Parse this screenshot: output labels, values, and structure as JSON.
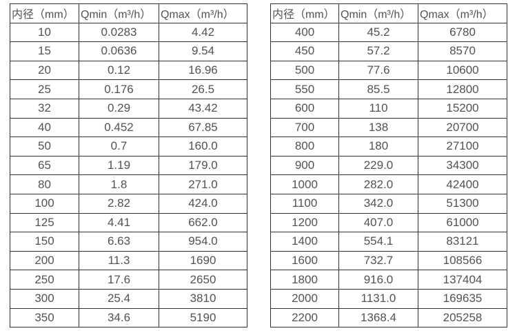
{
  "colors": {
    "background": "#ffffff",
    "border": "#2e2e2e",
    "text": "#525252"
  },
  "tables": [
    {
      "name": "flow-range-table-small-diameters",
      "headers": [
        "内径（mm）",
        "Qmin（m³/h）",
        "Qmax（m³/h）"
      ],
      "column_keys": [
        "inner_diameter_mm",
        "qmin_m3h",
        "qmax_m3h"
      ],
      "rows": [
        [
          "10",
          "0.0283",
          "4.42"
        ],
        [
          "15",
          "0.0636",
          "9.54"
        ],
        [
          "20",
          "0.12",
          "16.96"
        ],
        [
          "25",
          "0.176",
          "26.5"
        ],
        [
          "32",
          "0.29",
          "43.42"
        ],
        [
          "40",
          "0.452",
          "67.85"
        ],
        [
          "50",
          "0.7",
          "160.0"
        ],
        [
          "65",
          "1.19",
          "179.0"
        ],
        [
          "80",
          "1.8",
          "271.0"
        ],
        [
          "100",
          "2.82",
          "424.0"
        ],
        [
          "125",
          "4.41",
          "662.0"
        ],
        [
          "150",
          "6.63",
          "954.0"
        ],
        [
          "200",
          "11.3",
          "1690"
        ],
        [
          "250",
          "17.6",
          "2650"
        ],
        [
          "300",
          "25.4",
          "3810"
        ],
        [
          "350",
          "34.6",
          "5190"
        ]
      ]
    },
    {
      "name": "flow-range-table-large-diameters",
      "headers": [
        "内径（mm）",
        "Qmin（m³/h）",
        "Qmax（m³/h）"
      ],
      "column_keys": [
        "inner_diameter_mm",
        "qmin_m3h",
        "qmax_m3h"
      ],
      "rows": [
        [
          "400",
          "45.2",
          "6780"
        ],
        [
          "450",
          "57.2",
          "8570"
        ],
        [
          "500",
          "77.6",
          "10600"
        ],
        [
          "550",
          "85.5",
          "12800"
        ],
        [
          "600",
          "110",
          "15200"
        ],
        [
          "700",
          "138",
          "20700"
        ],
        [
          "800",
          "180",
          "27100"
        ],
        [
          "900",
          "229.0",
          "34300"
        ],
        [
          "1000",
          "282.0",
          "42400"
        ],
        [
          "1100",
          "342.0",
          "51300"
        ],
        [
          "1200",
          "407.0",
          "61000"
        ],
        [
          "1400",
          "554.1",
          "83121"
        ],
        [
          "1600",
          "732.7",
          "108566"
        ],
        [
          "1800",
          "916.0",
          "137404"
        ],
        [
          "2000",
          "1131.0",
          "169635"
        ],
        [
          "2200",
          "1368.4",
          "205258"
        ]
      ]
    }
  ]
}
